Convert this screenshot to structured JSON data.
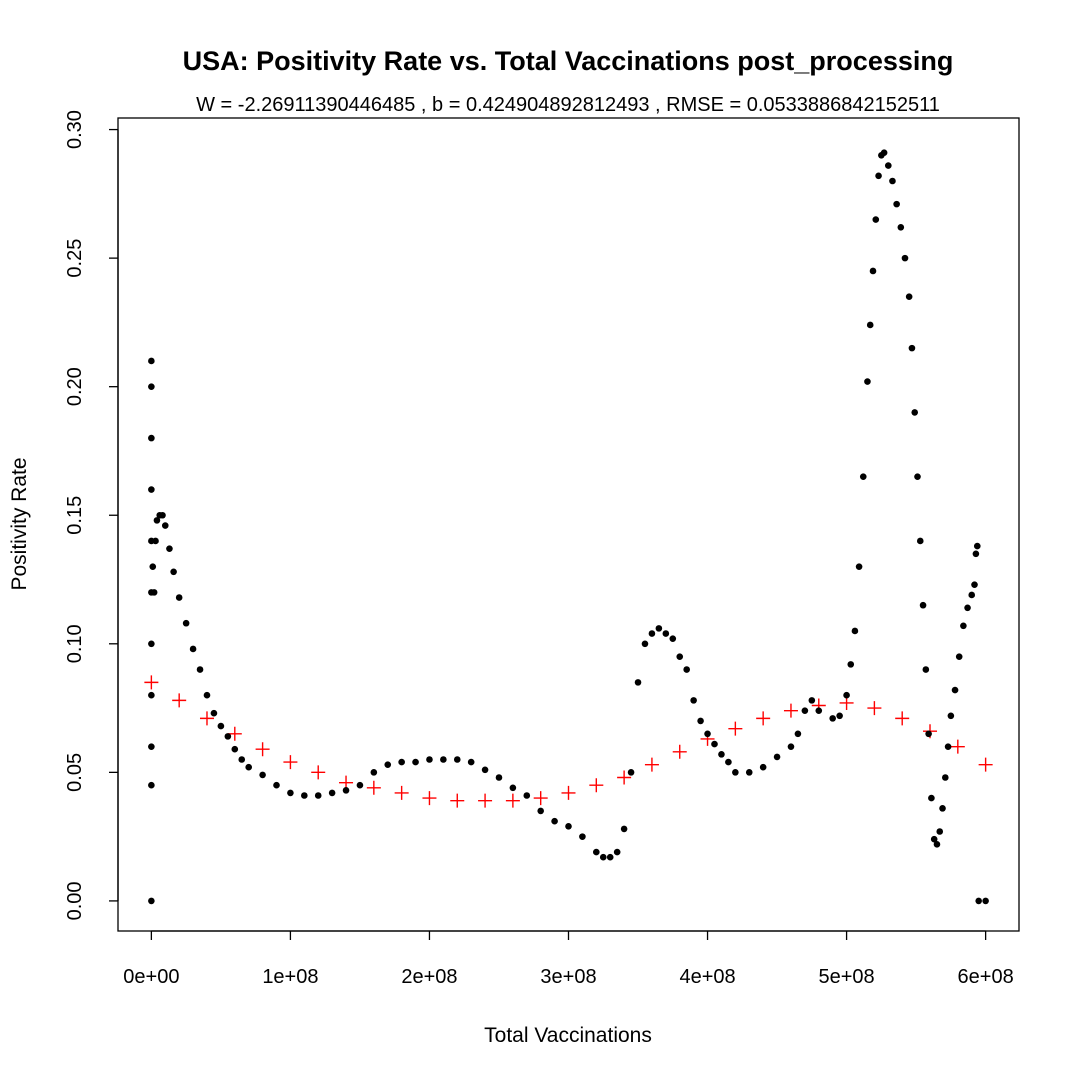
{
  "chart_data": {
    "type": "scatter",
    "title": "USA: Positivity Rate vs. Total Vaccinations post_processing",
    "subtitle": "W = -2.26911390446485 , b = 0.424904892812493 , RMSE = 0.0533886842152511",
    "xlabel": "Total Vaccinations",
    "ylabel": "Positivity Rate",
    "xlim": [
      -24000000,
      624000000
    ],
    "ylim": [
      -0.0117,
      0.3045
    ],
    "x_ticks": [
      0,
      100000000,
      200000000,
      300000000,
      400000000,
      500000000,
      600000000
    ],
    "x_tick_labels": [
      "0e+00",
      "1e+08",
      "2e+08",
      "3e+08",
      "4e+08",
      "5e+08",
      "6e+08"
    ],
    "y_ticks": [
      0.0,
      0.05,
      0.1,
      0.15,
      0.2,
      0.25,
      0.3
    ],
    "y_tick_labels": [
      "0.00",
      "0.05",
      "0.10",
      "0.15",
      "0.20",
      "0.25",
      "0.30"
    ],
    "grid": false,
    "legend": "none",
    "series": [
      {
        "marker": "filled-circle",
        "color": "#000000",
        "points": [
          [
            0,
            0.0
          ],
          [
            0,
            0.045
          ],
          [
            0,
            0.06
          ],
          [
            0,
            0.08
          ],
          [
            0,
            0.1
          ],
          [
            0,
            0.12
          ],
          [
            0,
            0.14
          ],
          [
            0,
            0.16
          ],
          [
            0,
            0.18
          ],
          [
            0,
            0.2
          ],
          [
            0,
            0.21
          ],
          [
            1000000,
            0.13
          ],
          [
            2000000,
            0.12
          ],
          [
            3000000,
            0.14
          ],
          [
            4000000,
            0.148
          ],
          [
            6000000,
            0.15
          ],
          [
            8000000,
            0.15
          ],
          [
            10000000,
            0.146
          ],
          [
            13000000,
            0.137
          ],
          [
            16000000,
            0.128
          ],
          [
            20000000,
            0.118
          ],
          [
            25000000,
            0.108
          ],
          [
            30000000,
            0.098
          ],
          [
            35000000,
            0.09
          ],
          [
            40000000,
            0.08
          ],
          [
            45000000,
            0.073
          ],
          [
            50000000,
            0.068
          ],
          [
            55000000,
            0.064
          ],
          [
            60000000,
            0.059
          ],
          [
            65000000,
            0.055
          ],
          [
            70000000,
            0.052
          ],
          [
            80000000,
            0.049
          ],
          [
            90000000,
            0.045
          ],
          [
            100000000,
            0.042
          ],
          [
            110000000,
            0.041
          ],
          [
            120000000,
            0.041
          ],
          [
            130000000,
            0.042
          ],
          [
            140000000,
            0.043
          ],
          [
            150000000,
            0.045
          ],
          [
            160000000,
            0.05
          ],
          [
            170000000,
            0.053
          ],
          [
            180000000,
            0.054
          ],
          [
            190000000,
            0.054
          ],
          [
            200000000,
            0.055
          ],
          [
            210000000,
            0.055
          ],
          [
            220000000,
            0.055
          ],
          [
            230000000,
            0.054
          ],
          [
            240000000,
            0.051
          ],
          [
            250000000,
            0.048
          ],
          [
            260000000,
            0.044
          ],
          [
            270000000,
            0.041
          ],
          [
            280000000,
            0.035
          ],
          [
            290000000,
            0.031
          ],
          [
            300000000,
            0.029
          ],
          [
            310000000,
            0.025
          ],
          [
            320000000,
            0.019
          ],
          [
            325000000,
            0.017
          ],
          [
            330000000,
            0.017
          ],
          [
            335000000,
            0.019
          ],
          [
            340000000,
            0.028
          ],
          [
            345000000,
            0.05
          ],
          [
            350000000,
            0.085
          ],
          [
            355000000,
            0.1
          ],
          [
            360000000,
            0.104
          ],
          [
            365000000,
            0.106
          ],
          [
            370000000,
            0.104
          ],
          [
            375000000,
            0.102
          ],
          [
            380000000,
            0.095
          ],
          [
            385000000,
            0.09
          ],
          [
            390000000,
            0.078
          ],
          [
            395000000,
            0.07
          ],
          [
            400000000,
            0.065
          ],
          [
            405000000,
            0.061
          ],
          [
            410000000,
            0.057
          ],
          [
            415000000,
            0.054
          ],
          [
            420000000,
            0.05
          ],
          [
            430000000,
            0.05
          ],
          [
            440000000,
            0.052
          ],
          [
            450000000,
            0.056
          ],
          [
            460000000,
            0.06
          ],
          [
            465000000,
            0.065
          ],
          [
            470000000,
            0.074
          ],
          [
            475000000,
            0.078
          ],
          [
            480000000,
            0.074
          ],
          [
            490000000,
            0.071
          ],
          [
            495000000,
            0.072
          ],
          [
            500000000,
            0.08
          ],
          [
            503000000,
            0.092
          ],
          [
            506000000,
            0.105
          ],
          [
            509000000,
            0.13
          ],
          [
            512000000,
            0.165
          ],
          [
            515000000,
            0.202
          ],
          [
            517000000,
            0.224
          ],
          [
            519000000,
            0.245
          ],
          [
            521000000,
            0.265
          ],
          [
            523000000,
            0.282
          ],
          [
            525000000,
            0.29
          ],
          [
            527000000,
            0.291
          ],
          [
            530000000,
            0.286
          ],
          [
            533000000,
            0.28
          ],
          [
            536000000,
            0.271
          ],
          [
            539000000,
            0.262
          ],
          [
            542000000,
            0.25
          ],
          [
            545000000,
            0.235
          ],
          [
            547000000,
            0.215
          ],
          [
            549000000,
            0.19
          ],
          [
            551000000,
            0.165
          ],
          [
            553000000,
            0.14
          ],
          [
            555000000,
            0.115
          ],
          [
            557000000,
            0.09
          ],
          [
            559000000,
            0.065
          ],
          [
            561000000,
            0.04
          ],
          [
            563000000,
            0.024
          ],
          [
            565000000,
            0.022
          ],
          [
            567000000,
            0.027
          ],
          [
            569000000,
            0.036
          ],
          [
            571000000,
            0.048
          ],
          [
            573000000,
            0.06
          ],
          [
            575000000,
            0.072
          ],
          [
            578000000,
            0.082
          ],
          [
            581000000,
            0.095
          ],
          [
            584000000,
            0.107
          ],
          [
            587000000,
            0.114
          ],
          [
            590000000,
            0.119
          ],
          [
            592000000,
            0.123
          ],
          [
            593000000,
            0.135
          ],
          [
            594000000,
            0.138
          ],
          [
            595000000,
            0.0
          ],
          [
            600000000,
            0.0
          ]
        ]
      },
      {
        "marker": "plus",
        "color": "#ff0000",
        "points": [
          [
            0,
            0.085
          ],
          [
            20000000,
            0.078
          ],
          [
            40000000,
            0.071
          ],
          [
            60000000,
            0.065
          ],
          [
            80000000,
            0.059
          ],
          [
            100000000,
            0.054
          ],
          [
            120000000,
            0.05
          ],
          [
            140000000,
            0.046
          ],
          [
            160000000,
            0.044
          ],
          [
            180000000,
            0.042
          ],
          [
            200000000,
            0.04
          ],
          [
            220000000,
            0.039
          ],
          [
            240000000,
            0.039
          ],
          [
            260000000,
            0.039
          ],
          [
            280000000,
            0.04
          ],
          [
            300000000,
            0.042
          ],
          [
            320000000,
            0.045
          ],
          [
            340000000,
            0.048
          ],
          [
            360000000,
            0.053
          ],
          [
            380000000,
            0.058
          ],
          [
            400000000,
            0.063
          ],
          [
            420000000,
            0.067
          ],
          [
            440000000,
            0.071
          ],
          [
            460000000,
            0.074
          ],
          [
            480000000,
            0.076
          ],
          [
            500000000,
            0.077
          ],
          [
            520000000,
            0.075
          ],
          [
            540000000,
            0.071
          ],
          [
            560000000,
            0.066
          ],
          [
            580000000,
            0.06
          ],
          [
            600000000,
            0.053
          ]
        ]
      }
    ]
  }
}
